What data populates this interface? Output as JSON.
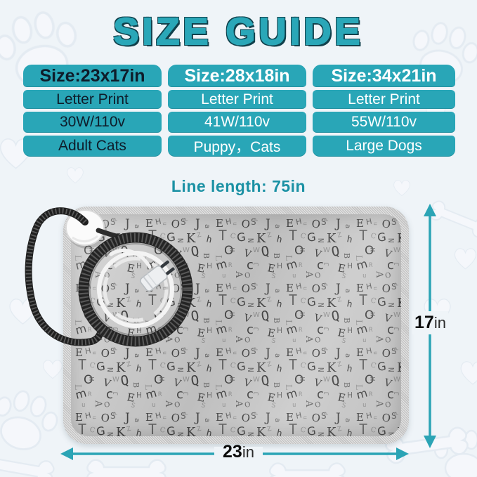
{
  "page": {
    "title": "SIZE GUIDE"
  },
  "size_table": {
    "columns": [
      {
        "header": "Size:23x17in",
        "rows": [
          "Letter Print",
          "30W/110v",
          "Adult Cats"
        ]
      },
      {
        "header": "Size:28x18in",
        "rows": [
          "Letter Print",
          "41W/110v",
          "Puppy，Cats"
        ]
      },
      {
        "header": "Size:34x21in",
        "rows": [
          "Letter Print",
          "55W/110v",
          "Large Dogs"
        ]
      }
    ]
  },
  "line_length_label": "Line length: 75in",
  "dimensions": {
    "height": {
      "value": "17",
      "unit": "in"
    },
    "width": {
      "value": "23",
      "unit": "in"
    }
  },
  "mat": {
    "pattern_letters": "EHuOSPJaTCGNKZhLOMVWQBmRAcJ"
  },
  "colors": {
    "teal": "#29a6b7",
    "title_teal": "#2aa7b8",
    "title_outline": "#11414c",
    "arrow_teal": "#2ba4b5",
    "table_text_dark": "#0e1c2a",
    "table_text_light": "#ffffff",
    "background": "#eff4f8",
    "mat_gray": "#c9c9c9",
    "mat_binding": "#d2d2d2"
  }
}
